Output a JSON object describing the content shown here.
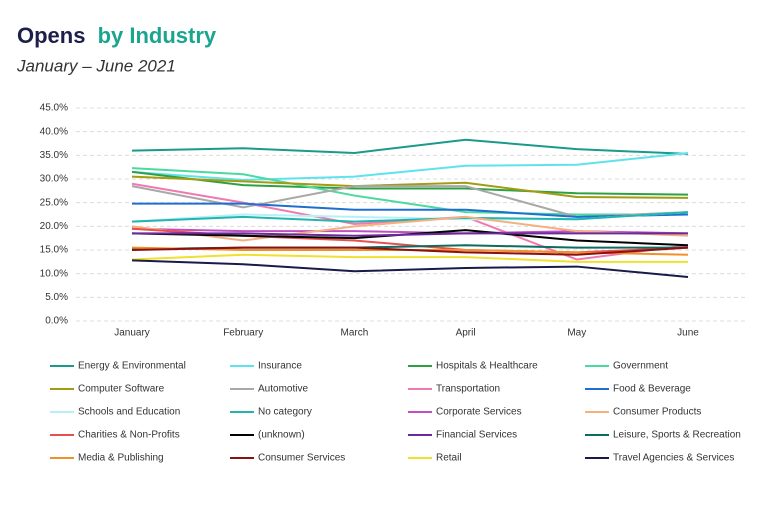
{
  "chart_data": {
    "type": "line",
    "title_parts": [
      "Opens",
      "by Industry"
    ],
    "title_colors": [
      "#1d1f4a",
      "#1aa58f"
    ],
    "subtitle": "January – June 2021",
    "categories": [
      "January",
      "February",
      "March",
      "April",
      "May",
      "June"
    ],
    "ylim": [
      0,
      45
    ],
    "yticks": [
      {
        "value": 0,
        "label": "0.0%"
      },
      {
        "value": 5,
        "label": "5.0%"
      },
      {
        "value": 10,
        "label": "10.0%"
      },
      {
        "value": 15,
        "label": "15.0%"
      },
      {
        "value": 20,
        "label": "20.0%"
      },
      {
        "value": 25,
        "label": "25.0%"
      },
      {
        "value": 30,
        "label": "30.0%"
      },
      {
        "value": 35,
        "label": "35.0%"
      },
      {
        "value": 40,
        "label": "40.0%"
      },
      {
        "value": 45,
        "label": "45.0%"
      }
    ],
    "grid": true,
    "legend_columns": 4,
    "series": [
      {
        "name": "Energy & Environmental",
        "color": "#1a9a8a",
        "values": [
          36,
          36.5,
          35.5,
          38.3,
          36.3,
          35.3
        ]
      },
      {
        "name": "Insurance",
        "color": "#5ee3ec",
        "values": [
          31.5,
          29.8,
          30.5,
          32.8,
          33,
          35.5
        ]
      },
      {
        "name": "Hospitals & Healthcare",
        "color": "#2ea043",
        "values": [
          31.5,
          28.7,
          28,
          28,
          27,
          26.7
        ]
      },
      {
        "name": "Government",
        "color": "#4cd9a0",
        "values": [
          32.3,
          31,
          26.5,
          23,
          22.5,
          22.5
        ]
      },
      {
        "name": "Computer Software",
        "color": "#a39b12",
        "values": [
          30.5,
          29.5,
          28.5,
          29.2,
          26.2,
          26
        ]
      },
      {
        "name": "Automotive",
        "color": "#a8a8a8",
        "values": [
          28.5,
          24,
          28.5,
          28.5,
          22,
          23
        ]
      },
      {
        "name": "Transportation",
        "color": "#f07ab0",
        "values": [
          29,
          25,
          20.5,
          22,
          13,
          16
        ]
      },
      {
        "name": "Food & Beverage",
        "color": "#1f6fd0",
        "values": [
          24.8,
          24.8,
          23.5,
          23.5,
          22,
          22.5
        ]
      },
      {
        "name": "Schools and Education",
        "color": "#b5f0f5",
        "values": [
          21,
          22.5,
          22,
          21.5,
          21.5,
          23
        ]
      },
      {
        "name": "No category",
        "color": "#22b5b0",
        "values": [
          21,
          22,
          21,
          21.8,
          21.5,
          23
        ]
      },
      {
        "name": "Corporate Services",
        "color": "#c050c0",
        "values": [
          19.5,
          19,
          19,
          18.5,
          19,
          18.5
        ]
      },
      {
        "name": "Consumer Products",
        "color": "#f5b080",
        "values": [
          20,
          17,
          20,
          22,
          19,
          18
        ]
      },
      {
        "name": "Charities & Non-Profits",
        "color": "#e85050",
        "values": [
          19.5,
          18,
          17,
          15,
          14.5,
          15.5
        ]
      },
      {
        "name": "(unknown)",
        "color": "#000000",
        "values": [
          18.5,
          18,
          17.5,
          19.2,
          17,
          16
        ]
      },
      {
        "name": "Financial Services",
        "color": "#6a2a9a",
        "values": [
          18.5,
          18.5,
          18,
          18.5,
          18.5,
          18.5
        ]
      },
      {
        "name": "Leisure, Sports & Recreation",
        "color": "#0f6b5f",
        "values": [
          15.2,
          15.5,
          15.5,
          16,
          15.5,
          15.5
        ]
      },
      {
        "name": "Media & Publishing",
        "color": "#f0902a",
        "values": [
          15.5,
          15,
          15,
          15,
          14.5,
          14
        ]
      },
      {
        "name": "Consumer Services",
        "color": "#8b1010",
        "values": [
          15,
          15.5,
          15.5,
          14.5,
          14,
          15.5
        ]
      },
      {
        "name": "Retail",
        "color": "#f0e030",
        "values": [
          13,
          14,
          13.5,
          13.5,
          12.5,
          12.5
        ]
      },
      {
        "name": "Travel Agencies & Services",
        "color": "#1a1a4a",
        "values": [
          12.8,
          12,
          10.5,
          11.2,
          11.5,
          9.3
        ]
      }
    ]
  }
}
